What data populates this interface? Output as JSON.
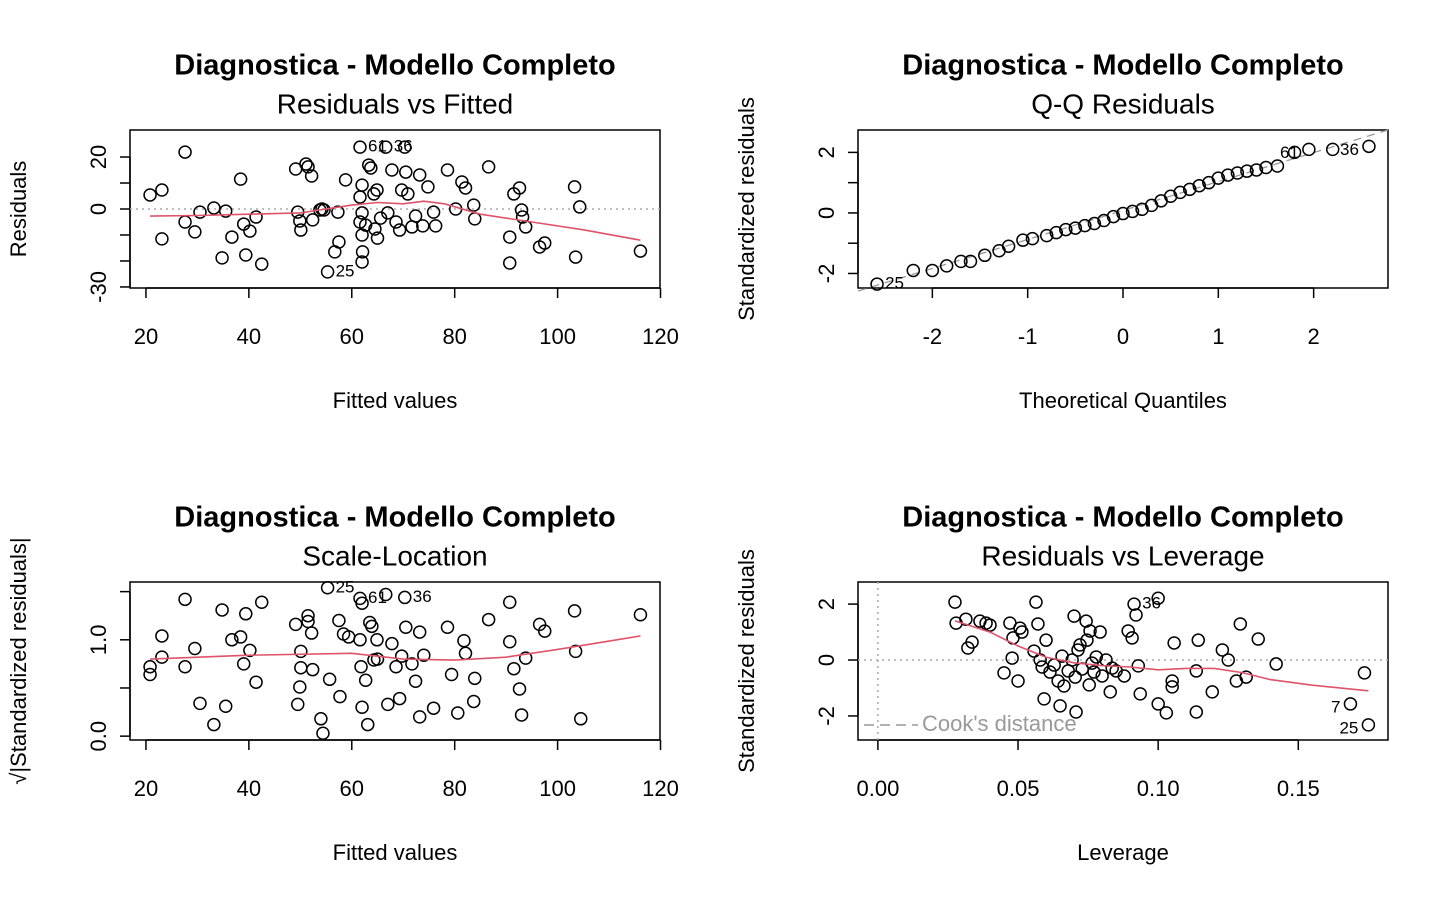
{
  "chart_data": [
    {
      "type": "scatter",
      "title": "Diagnostica - Modello Completo",
      "subtitle": "Residuals vs Fitted",
      "xlabel": "Fitted values",
      "ylabel": "Residuals",
      "xlim": [
        16.9,
        119.9
      ],
      "ylim": [
        -30.4,
        30.4
      ],
      "xticks": [
        20,
        40,
        60,
        80,
        100,
        120
      ],
      "yticks": [
        20,
        0,
        -30
      ],
      "yticks_minor": [
        10,
        -10,
        -20
      ],
      "hlines": [
        0
      ],
      "point_color": "#000000",
      "ref_color": "#AAAAAA",
      "x": [
        20.8,
        23.1,
        23.1,
        27.6,
        27.6,
        29.5,
        30.5,
        33.2,
        34.8,
        35.5,
        36.7,
        38.4,
        39,
        39.4,
        40.2,
        41.4,
        42.5,
        49.1,
        49.5,
        49.9,
        50.1,
        51.1,
        51.5,
        52.2,
        52.4,
        53.8,
        54.2,
        54.6,
        55.3,
        56.7,
        57.5,
        57.3,
        58.8,
        61.6,
        62,
        61.6,
        62,
        61.6,
        62,
        62,
        62.1,
        62.7,
        63.3,
        63.7,
        64.3,
        64.9,
        64.5,
        65,
        65.6,
        66.6,
        67,
        67.8,
        68.6,
        69.3,
        69.7,
        70.3,
        70.5,
        70.9,
        71.7,
        72.4,
        73.2,
        73.8,
        74.8,
        75.9,
        76.3,
        78.6,
        80.2,
        81.4,
        82.1,
        83.7,
        83.9,
        86.6,
        90.7,
        90.7,
        91.5,
        92.6,
        93,
        93.2,
        93.8,
        96.5,
        97.5,
        103.3,
        103.5,
        104.3,
        116.1
      ],
      "y": [
        5.4,
        7.3,
        -11.5,
        21.9,
        -5,
        -8.8,
        -1.2,
        0.4,
        -18.8,
        -0.8,
        -10.8,
        11.5,
        -5.8,
        -17.7,
        -8.5,
        -3.1,
        -21.2,
        15.4,
        -1.2,
        -4.6,
        -8.1,
        17.3,
        16.2,
        12.7,
        -4.2,
        -0.4,
        0,
        -0.4,
        -24.2,
        -16.5,
        -12.7,
        -1.2,
        11.2,
        23.8,
        9.2,
        4.6,
        -1.5,
        -5,
        -10,
        -20.4,
        -16.5,
        -6.2,
        16.9,
        15.8,
        5.8,
        7.3,
        -7.7,
        -11.2,
        -3.5,
        23.8,
        -1.5,
        15,
        -5,
        -8.1,
        7.3,
        23.8,
        14.2,
        5.8,
        -6.9,
        -2.7,
        13.1,
        -6.5,
        8.5,
        -1.2,
        -6.5,
        15,
        0,
        10.4,
        8.1,
        1.5,
        -3.8,
        16.2,
        -10.8,
        -20.8,
        5.8,
        8.1,
        -0.4,
        -3.1,
        -6.9,
        -14.6,
        -13.1,
        8.5,
        -18.5,
        0.8,
        -16.2
      ],
      "point_labels": [
        {
          "index": 33,
          "label": "61"
        },
        {
          "index": 49,
          "label": "36"
        },
        {
          "index": 28,
          "label": "25"
        }
      ],
      "smooth": {
        "color": "#DF536B",
        "x": [
          20.8,
          30,
          40,
          50,
          55,
          60,
          65,
          70,
          74,
          78,
          85,
          95,
          105,
          116.1
        ],
        "y": [
          -2.7,
          -2.5,
          -2,
          -1.5,
          0,
          1.5,
          2.5,
          2,
          3,
          2,
          -2,
          -5,
          -8,
          -12
        ]
      }
    },
    {
      "type": "scatter",
      "title": "Diagnostica - Modello Completo",
      "subtitle": "Q-Q Residuals",
      "xlabel": "Theoretical Quantiles",
      "ylabel": "Standardized residuals",
      "xlim": [
        -2.78,
        2.78
      ],
      "ylim": [
        -2.48,
        2.74
      ],
      "xticks": [
        -2,
        -1,
        0,
        1,
        2
      ],
      "yticks": [
        2,
        0,
        -2
      ],
      "yticks_minor": [
        1,
        -1
      ],
      "point_color": "#000000",
      "ref_color": "#999999",
      "x": [
        -2.58,
        -2.2,
        -2,
        -1.85,
        -1.7,
        -1.6,
        -1.45,
        -1.3,
        -1.2,
        -1.05,
        -0.95,
        -0.8,
        -0.7,
        -0.6,
        -0.5,
        -0.4,
        -0.3,
        -0.2,
        -0.1,
        0,
        0.1,
        0.2,
        0.3,
        0.4,
        0.5,
        0.6,
        0.7,
        0.8,
        0.9,
        1,
        1.1,
        1.2,
        1.3,
        1.4,
        1.5,
        1.62,
        1.8,
        1.95,
        2.2,
        2.58
      ],
      "y": [
        -2.35,
        -1.9,
        -1.9,
        -1.75,
        -1.6,
        -1.6,
        -1.4,
        -1.25,
        -1.1,
        -0.9,
        -0.85,
        -0.75,
        -0.65,
        -0.55,
        -0.5,
        -0.42,
        -0.35,
        -0.25,
        -0.12,
        -0.02,
        0.05,
        0.12,
        0.25,
        0.4,
        0.55,
        0.68,
        0.78,
        0.9,
        1,
        1.15,
        1.25,
        1.32,
        1.38,
        1.42,
        1.5,
        1.55,
        2,
        2.1,
        2.1,
        2.2
      ],
      "point_labels": [
        {
          "index": 0,
          "label": "25"
        },
        {
          "index": 37,
          "label": "61"
        },
        {
          "index": 39,
          "label": "36"
        }
      ],
      "qq_line": {
        "x": [
          -2.78,
          2.78
        ],
        "y": [
          -2.58,
          2.74
        ]
      }
    },
    {
      "type": "scatter",
      "title": "Diagnostica - Modello Completo",
      "subtitle": "Scale-Location",
      "xlabel": "Fitted values",
      "ylabel": "√|Standardized residuals|",
      "xlim": [
        16.9,
        119.9
      ],
      "ylim": [
        -0.04,
        1.6
      ],
      "xticks": [
        20,
        40,
        60,
        80,
        100,
        120
      ],
      "yticks": [
        {
          "value": 0,
          "label": "0.0"
        },
        {
          "value": 1,
          "label": "1.0"
        }
      ],
      "yticks_minor": [
        0.5,
        1.5
      ],
      "point_color": "#000000",
      "x": [
        20.8,
        20.8,
        23.1,
        23.1,
        27.6,
        27.6,
        29.5,
        30.5,
        33.2,
        34.8,
        35.5,
        36.7,
        38.4,
        39,
        39.4,
        40.2,
        41.4,
        42.5,
        49.1,
        49.5,
        49.9,
        50.1,
        50.1,
        51.5,
        51.5,
        52.2,
        52.4,
        54,
        54.4,
        55.3,
        55.7,
        57.5,
        57.7,
        58.4,
        59.4,
        61.6,
        62,
        61.6,
        61.8,
        62,
        62.7,
        63.1,
        63.5,
        63.9,
        64.3,
        64.9,
        65,
        66.6,
        67,
        67.8,
        68.6,
        69.3,
        69.7,
        70.3,
        70.5,
        71.7,
        72.4,
        73.2,
        73.2,
        74,
        75.9,
        78.6,
        79.4,
        80.6,
        81.8,
        82.1,
        83.7,
        83.9,
        86.6,
        90.7,
        90.7,
        91.5,
        92.6,
        93,
        93.8,
        96.5,
        97.5,
        103.3,
        103.5,
        104.5,
        116.1
      ],
      "y": [
        0.72,
        0.64,
        1.04,
        0.82,
        1.42,
        0.72,
        0.91,
        0.34,
        0.12,
        1.31,
        0.31,
        1,
        1.03,
        0.75,
        1.27,
        0.89,
        0.56,
        1.39,
        1.16,
        0.33,
        0.51,
        0.71,
        0.88,
        1.25,
        1.19,
        1.07,
        0.69,
        0.18,
        0.03,
        1.54,
        0.59,
        1.2,
        0.41,
        1.06,
        1.03,
        1.43,
        1.38,
        1,
        0.72,
        0.3,
        0.58,
        0.12,
        1.18,
        1.14,
        0.79,
        1,
        0.8,
        1.47,
        0.33,
        0.96,
        0.72,
        0.39,
        0.83,
        1.44,
        1.13,
        0.75,
        0.57,
        0.2,
        1.08,
        0.84,
        0.29,
        1.13,
        0.64,
        0.24,
        0.99,
        0.86,
        0.36,
        0.6,
        1.21,
        1.39,
        0.98,
        0.7,
        0.49,
        0.22,
        0.81,
        1.16,
        1.09,
        1.3,
        0.88,
        0.18,
        1.26
      ],
      "point_labels": [
        {
          "index": 29,
          "label": "25"
        },
        {
          "index": 35,
          "label": "61"
        },
        {
          "index": 53,
          "label": "36"
        }
      ],
      "smooth": {
        "color": "#DF536B",
        "x": [
          20.8,
          40,
          60,
          70,
          80,
          90,
          100,
          116.1
        ],
        "y": [
          0.8,
          0.84,
          0.86,
          0.8,
          0.79,
          0.82,
          0.9,
          1.04
        ]
      }
    },
    {
      "type": "scatter",
      "title": "Diagnostica - Modello Completo",
      "subtitle": "Residuals vs Leverage",
      "xlabel": "Leverage",
      "ylabel": "Standardized residuals",
      "xlim": [
        -0.0071,
        0.182
      ],
      "ylim": [
        -2.86,
        2.79
      ],
      "xticks": [
        {
          "value": 0,
          "label": "0.00"
        },
        0.05,
        {
          "value": 0.1,
          "label": "0.10"
        },
        0.15
      ],
      "yticks": [
        2,
        0,
        -2
      ],
      "hlines": [
        0
      ],
      "vlines": [
        0
      ],
      "point_color": "#000000",
      "ref_color": "#AAAAAA",
      "legend_text": "Cook's distance",
      "legend_color": "#999999",
      "x": [
        0.0275,
        0.0279,
        0.0314,
        0.0321,
        0.0336,
        0.0364,
        0.0386,
        0.04,
        0.045,
        0.0471,
        0.0482,
        0.0479,
        0.05,
        0.0507,
        0.0514,
        0.0557,
        0.0564,
        0.0571,
        0.0579,
        0.0586,
        0.0593,
        0.06,
        0.0614,
        0.0629,
        0.0643,
        0.065,
        0.0657,
        0.0664,
        0.0679,
        0.0693,
        0.07,
        0.0704,
        0.0707,
        0.0714,
        0.0721,
        0.0729,
        0.0743,
        0.0746,
        0.0754,
        0.0757,
        0.0764,
        0.0771,
        0.0779,
        0.0793,
        0.08,
        0.0814,
        0.0829,
        0.0836,
        0.085,
        0.0879,
        0.0893,
        0.0907,
        0.0914,
        0.0921,
        0.0929,
        0.0936,
        0.1,
        0.1,
        0.1029,
        0.105,
        0.1057,
        0.105,
        0.1136,
        0.1143,
        0.1136,
        0.1193,
        0.1229,
        0.125,
        0.1279,
        0.1293,
        0.1314,
        0.1357,
        0.1421,
        0.1686,
        0.1736,
        0.175
      ],
      "y": [
        2.07,
        1.32,
        1.46,
        0.43,
        0.64,
        1.39,
        1.32,
        1.25,
        -0.46,
        1.32,
        0.79,
        0.07,
        -0.75,
        1.14,
        1,
        0.32,
        2.07,
        1.29,
        0,
        -0.25,
        -1.39,
        0.71,
        -0.43,
        -0.18,
        -0.75,
        -1.64,
        0.14,
        -0.93,
        -0.39,
        0,
        1.57,
        -0.61,
        -1.86,
        0.36,
        0.54,
        -0.32,
        1.39,
        0.71,
        -0.89,
        1.04,
        -0.11,
        -0.43,
        0.11,
        1,
        -0.57,
        0,
        -1.14,
        -0.29,
        -0.39,
        -0.57,
        1.04,
        0.79,
        2,
        1.61,
        -0.21,
        -1.21,
        -1.57,
        2.21,
        -1.89,
        -0.75,
        0.61,
        -0.96,
        -1.86,
        0.71,
        -0.39,
        -1.14,
        0.36,
        0,
        -0.75,
        1.29,
        -0.61,
        0.75,
        -0.14,
        -1.57,
        -0.46,
        -2.32
      ],
      "point_labels": [
        {
          "index": 52,
          "label": "36"
        },
        {
          "index": 73,
          "label": "7"
        },
        {
          "index": 75,
          "label": "25"
        }
      ],
      "smooth": {
        "color": "#DF536B",
        "x": [
          0.0275,
          0.04,
          0.05,
          0.06,
          0.07,
          0.08,
          0.09,
          0.1,
          0.11,
          0.12,
          0.13,
          0.14,
          0.155,
          0.175
        ],
        "y": [
          1.4,
          1,
          0.5,
          0.1,
          -0.1,
          -0.2,
          -0.25,
          -0.35,
          -0.3,
          -0.3,
          -0.45,
          -0.7,
          -0.9,
          -1.1
        ]
      }
    }
  ]
}
